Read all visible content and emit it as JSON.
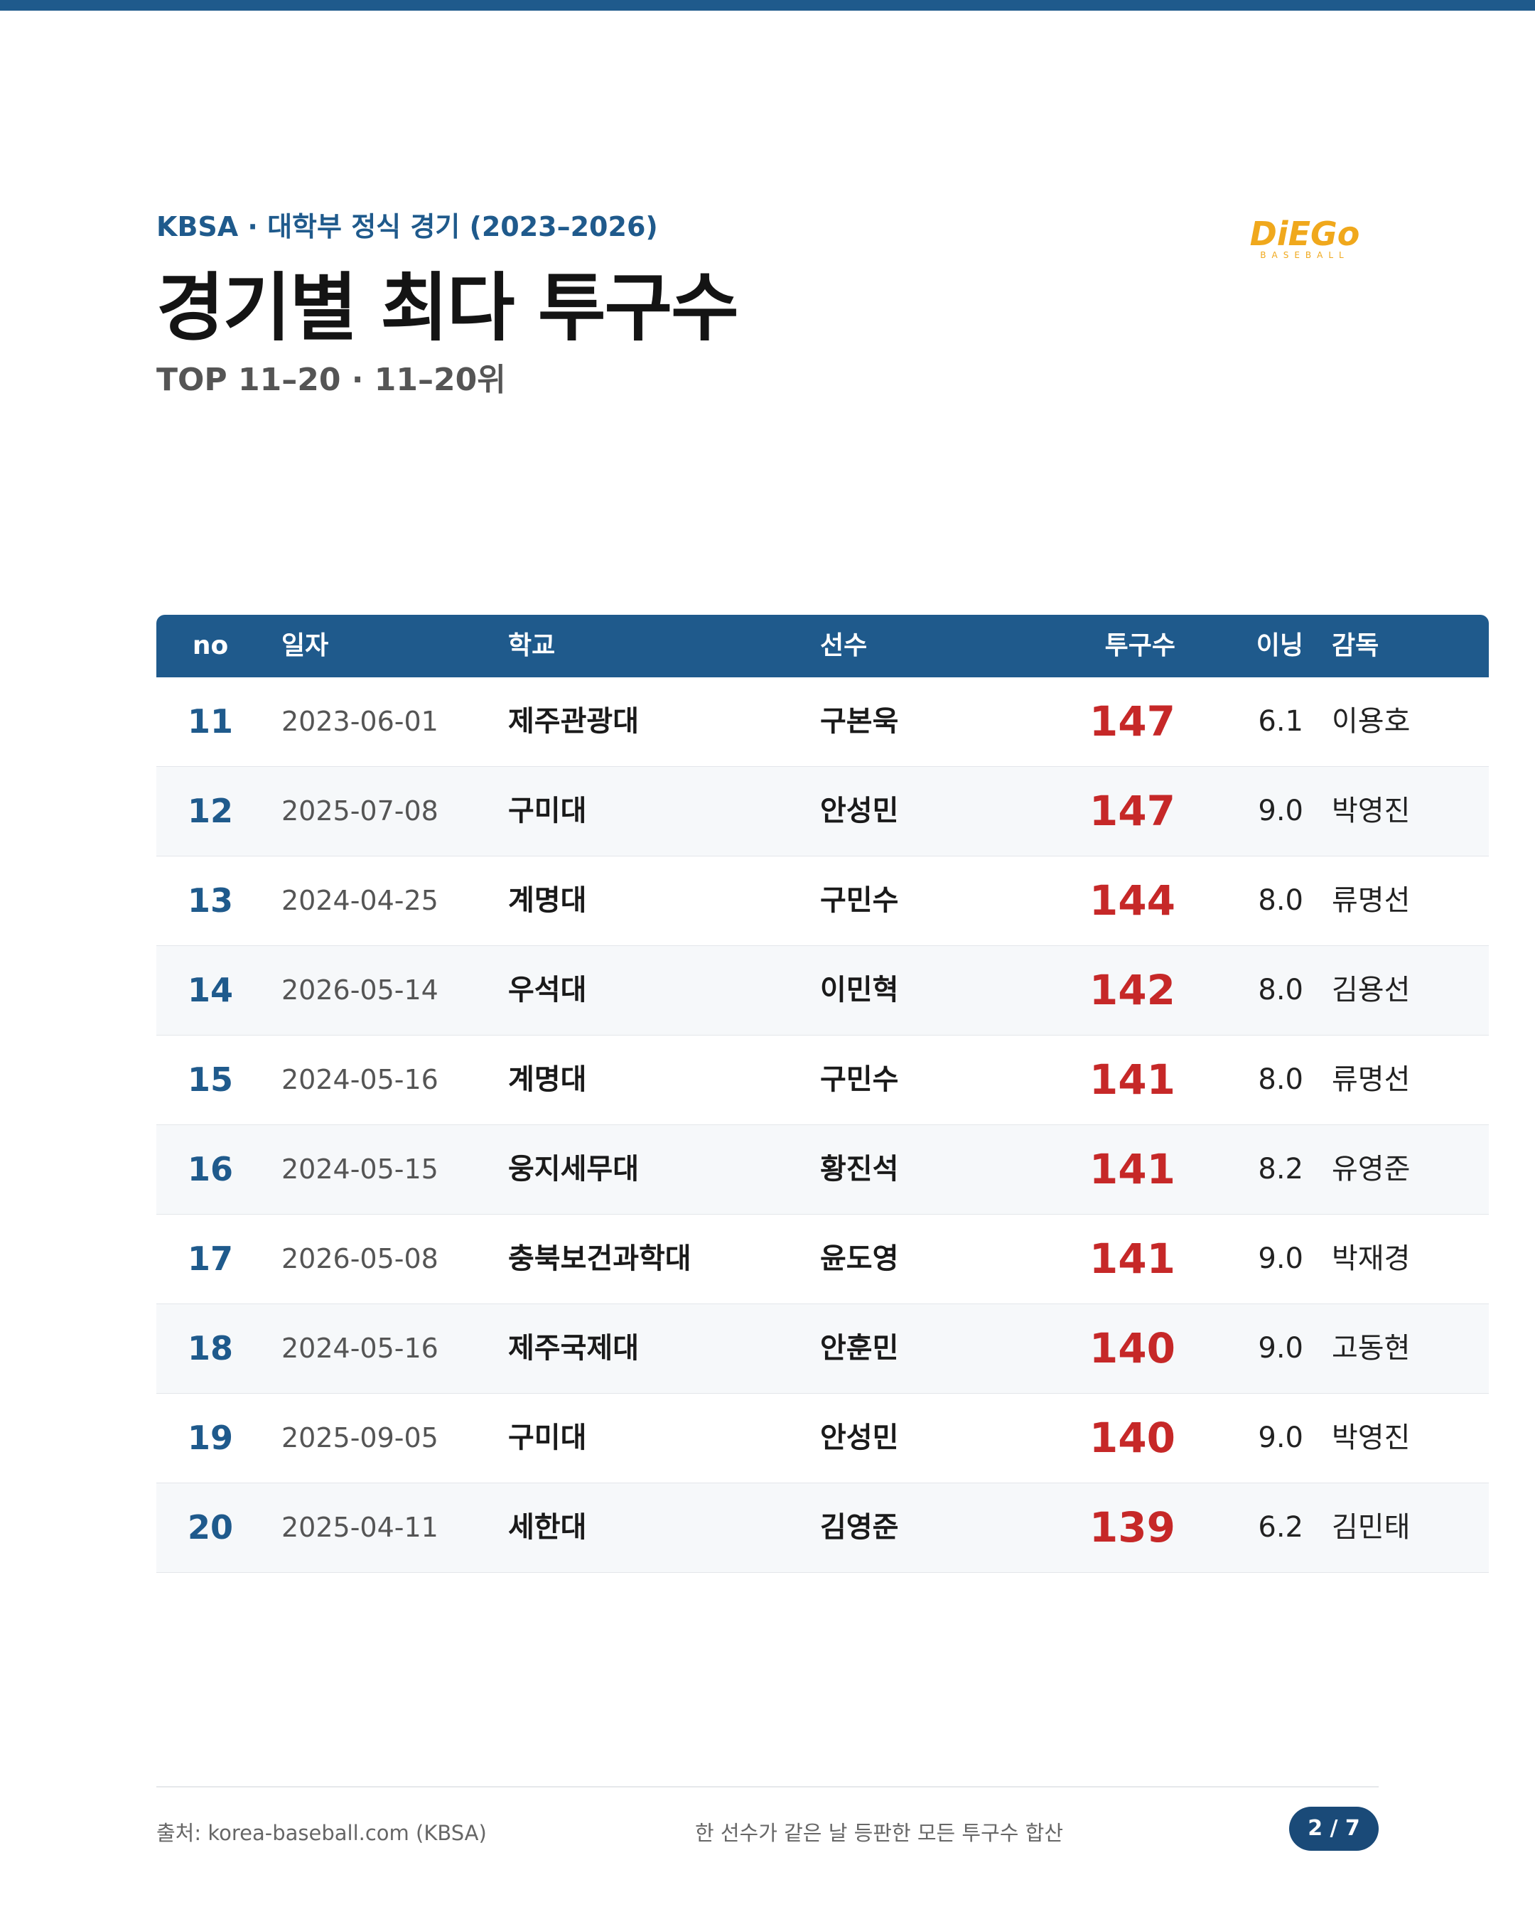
{
  "header": {
    "kicker": "KBSA · 대학부 정식 경기 (2023–2026)",
    "title": "경기별 최다 투구수",
    "subtitle": "TOP 11–20 · 11–20위",
    "logo": {
      "name": "DiEGo",
      "tag": "BASEBALL"
    }
  },
  "table": {
    "columns": [
      "no",
      "일자",
      "학교",
      "선수",
      "투구수",
      "이닝",
      "감독"
    ],
    "rows": [
      [
        "11",
        "2023-06-01",
        "제주관광대",
        "구본욱",
        "147",
        "6.1",
        "이용호"
      ],
      [
        "12",
        "2025-07-08",
        "구미대",
        "안성민",
        "147",
        "9.0",
        "박영진"
      ],
      [
        "13",
        "2024-04-25",
        "계명대",
        "구민수",
        "144",
        "8.0",
        "류명선"
      ],
      [
        "14",
        "2026-05-14",
        "우석대",
        "이민혁",
        "142",
        "8.0",
        "김용선"
      ],
      [
        "15",
        "2024-05-16",
        "계명대",
        "구민수",
        "141",
        "8.0",
        "류명선"
      ],
      [
        "16",
        "2024-05-15",
        "웅지세무대",
        "황진석",
        "141",
        "8.2",
        "유영준"
      ],
      [
        "17",
        "2026-05-08",
        "충북보건과학대",
        "윤도영",
        "141",
        "9.0",
        "박재경"
      ],
      [
        "18",
        "2024-05-16",
        "제주국제대",
        "안훈민",
        "140",
        "9.0",
        "고동현"
      ],
      [
        "19",
        "2025-09-05",
        "구미대",
        "안성민",
        "140",
        "9.0",
        "박영진"
      ],
      [
        "20",
        "2025-04-11",
        "세한대",
        "김영준",
        "139",
        "6.2",
        "김민태"
      ]
    ]
  },
  "footer": {
    "source": "출처: korea-baseball.com (KBSA)",
    "note": "한 선수가 같은 날 등판한 모든 투구수 합산",
    "page": "2 / 7"
  }
}
